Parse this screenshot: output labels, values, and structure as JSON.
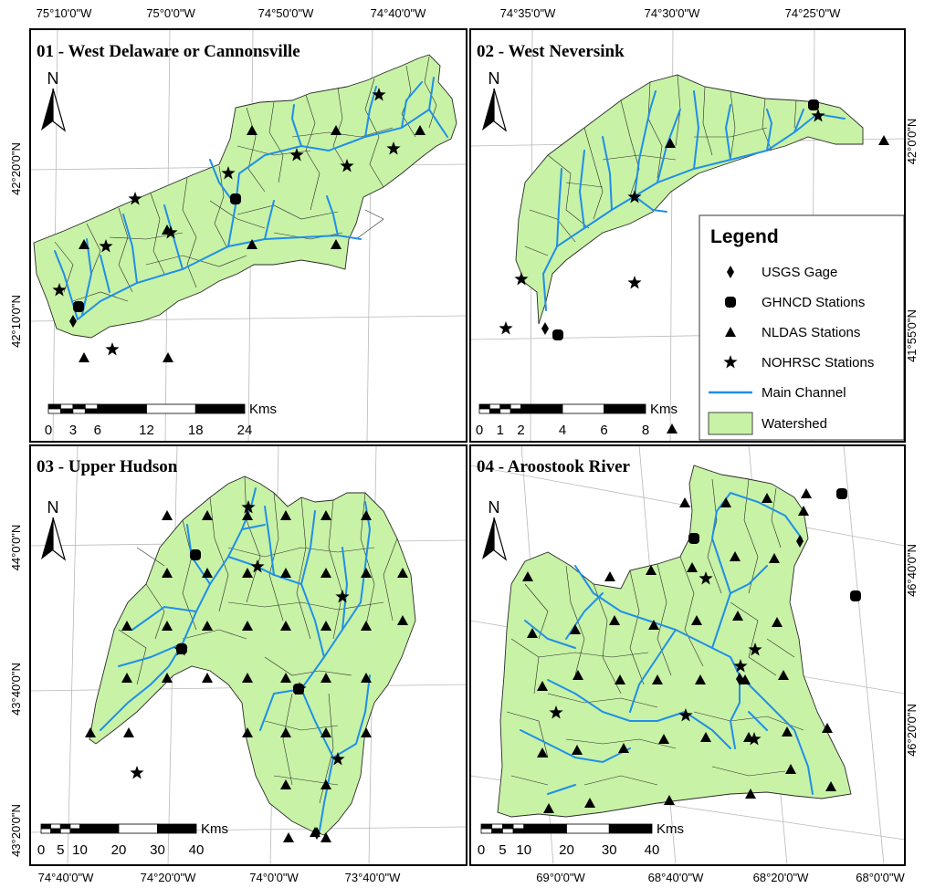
{
  "colors": {
    "watershed_fill": "#c8f2a6",
    "subbasin_line": "#2a2a2a",
    "channel": "#1f8fe8",
    "grid": "#b9b9b9",
    "marker": "#000000"
  },
  "top_axis": {
    "left": [
      "75°10'0\"W",
      "75°0'0\"W",
      "74°50'0\"W",
      "74°40'0\"W"
    ],
    "right": [
      "74°35'0\"W",
      "74°30'0\"W",
      "74°25'0\"W"
    ]
  },
  "bottom_axis": {
    "left": [
      "74°40'0\"W",
      "74°20'0\"W",
      "74°0'0\"W",
      "73°40'0\"W"
    ],
    "right": [
      "69°0'0\"W",
      "68°40'0\"W",
      "68°20'0\"W",
      "68°0'0\"W"
    ]
  },
  "left_axis": {
    "top": [
      "42°20'0\"N",
      "42°10'0\"N"
    ],
    "bottom": [
      "44°0'0\"N",
      "43°40'0\"N",
      "43°20'0\"N"
    ]
  },
  "right_axis": {
    "top": [
      "42°0'0\"N",
      "41°55'0\"N"
    ],
    "bottom": [
      "46°40'0\"N",
      "46°20'0\"N"
    ]
  },
  "panels": [
    {
      "title": "01 - West Delaware or Cannonsville",
      "north": "N",
      "scale_unit": "Kms",
      "scale_ticks": [
        "0",
        "3",
        "6",
        "12",
        "18",
        "24"
      ]
    },
    {
      "title": "02 - West Neversink",
      "north": "N",
      "scale_unit": "Kms",
      "scale_ticks": [
        "0",
        "1",
        "2",
        "4",
        "6",
        "8"
      ]
    },
    {
      "title": "03 - Upper Hudson",
      "north": "N",
      "scale_unit": "Kms",
      "scale_ticks": [
        "0",
        "5",
        "10",
        "20",
        "30",
        "40"
      ]
    },
    {
      "title": "04 - Aroostook River",
      "north": "N",
      "scale_unit": "Kms",
      "scale_ticks": [
        "0",
        "5",
        "10",
        "20",
        "30",
        "40"
      ]
    }
  ],
  "legend": {
    "title": "Legend",
    "items": [
      {
        "label": "USGS Gage",
        "symbol": "diamond"
      },
      {
        "label": "GHNCD Stations",
        "symbol": "rounded-square"
      },
      {
        "label": "NLDAS Stations",
        "symbol": "triangle"
      },
      {
        "label": "NOHRSC Stations",
        "symbol": "star"
      },
      {
        "label": "Main Channel",
        "symbol": "line"
      },
      {
        "label": "Watershed",
        "symbol": "fill"
      }
    ]
  }
}
